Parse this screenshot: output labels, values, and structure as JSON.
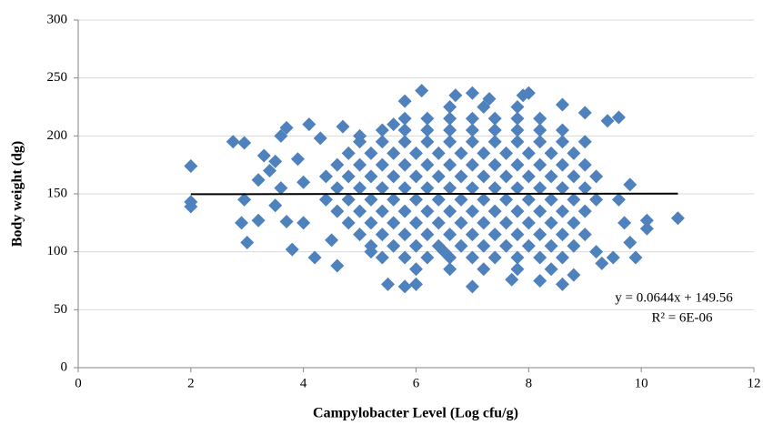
{
  "chart_data": {
    "type": "scatter",
    "x_label": "Campylobacter Level (Log cfu/g)",
    "y_label": "Body weight (dg)",
    "color": "#4f81bd",
    "xlim": [
      0,
      12
    ],
    "xticks": [
      0,
      2,
      4,
      6,
      8,
      10,
      12
    ],
    "ylim": [
      0,
      300
    ],
    "yticks": [
      0,
      50,
      100,
      150,
      200,
      250,
      300
    ],
    "grid": true,
    "x": [
      6.6,
      7.2,
      7.8,
      5.8,
      6.2,
      6.6,
      7.0,
      7.4,
      7.8,
      8.2,
      5.4,
      5.8,
      6.2,
      6.6,
      7.0,
      7.4,
      7.8,
      8.2,
      8.6,
      5.0,
      5.4,
      5.8,
      6.2,
      6.6,
      7.0,
      7.4,
      7.8,
      8.2,
      8.6,
      9.0,
      4.8,
      5.2,
      5.6,
      6.0,
      6.4,
      6.8,
      7.2,
      7.6,
      8.0,
      8.4,
      8.8,
      4.6,
      5.0,
      5.4,
      5.8,
      6.2,
      6.6,
      7.0,
      7.4,
      7.8,
      8.2,
      8.6,
      9.0,
      4.4,
      4.8,
      5.2,
      5.6,
      6.0,
      6.4,
      6.8,
      7.2,
      7.6,
      8.0,
      8.4,
      8.8,
      9.2,
      4.6,
      5.0,
      5.4,
      5.8,
      6.2,
      6.6,
      7.0,
      7.4,
      7.8,
      8.2,
      8.6,
      9.0,
      4.4,
      4.8,
      5.2,
      5.6,
      6.0,
      6.4,
      6.8,
      7.2,
      7.6,
      8.0,
      8.4,
      8.8,
      9.2,
      4.6,
      5.0,
      5.4,
      5.8,
      6.2,
      6.6,
      7.0,
      7.4,
      7.8,
      8.2,
      8.6,
      9.0,
      4.8,
      5.2,
      5.6,
      6.0,
      6.4,
      6.8,
      7.2,
      7.6,
      8.0,
      8.4,
      8.8,
      5.0,
      5.4,
      5.8,
      6.2,
      6.6,
      7.0,
      7.4,
      7.8,
      8.2,
      8.6,
      9.0,
      5.2,
      5.6,
      6.0,
      6.4,
      6.8,
      7.2,
      7.6,
      8.0,
      8.4,
      8.8,
      5.4,
      5.8,
      6.2,
      6.6,
      7.0,
      7.4,
      7.8,
      8.2,
      8.6,
      6.0,
      6.6,
      7.2,
      7.8,
      8.4,
      2,
      2,
      2,
      2.75,
      2.95,
      2.9,
      2.95,
      3.0,
      3.2,
      3.2,
      3.3,
      3.4,
      3.5,
      3.5,
      3.6,
      3.7,
      3.6,
      3.7,
      3.8,
      3.9,
      4.0,
      4.1,
      4.2,
      4.0,
      4.3,
      4.5,
      4.6,
      4.7,
      5.0,
      5.2,
      5.5,
      5.6,
      5.8,
      5.8,
      6.1,
      6.0,
      6.5,
      6.7,
      7.0,
      7.0,
      7.3,
      7.7,
      7.9,
      8.0,
      8.2,
      8.6,
      8.6,
      8.8,
      9.0,
      9.2,
      9.3,
      9.4,
      9.6,
      9.5,
      9.6,
      9.7,
      9.8,
      9.9,
      9.8,
      10.1,
      10.1,
      10.65
    ],
    "values": [
      225,
      225,
      225,
      215,
      215,
      215,
      215,
      215,
      215,
      215,
      205,
      205,
      205,
      205,
      205,
      205,
      205,
      205,
      205,
      195,
      195,
      195,
      195,
      195,
      195,
      195,
      195,
      195,
      195,
      195,
      185,
      185,
      185,
      185,
      185,
      185,
      185,
      185,
      185,
      185,
      185,
      175,
      175,
      175,
      175,
      175,
      175,
      175,
      175,
      175,
      175,
      175,
      175,
      165,
      165,
      165,
      165,
      165,
      165,
      165,
      165,
      165,
      165,
      165,
      165,
      165,
      155,
      155,
      155,
      155,
      155,
      155,
      155,
      155,
      155,
      155,
      155,
      155,
      145,
      145,
      145,
      145,
      145,
      145,
      145,
      145,
      145,
      145,
      145,
      145,
      145,
      135,
      135,
      135,
      135,
      135,
      135,
      135,
      135,
      135,
      135,
      135,
      135,
      125,
      125,
      125,
      125,
      125,
      125,
      125,
      125,
      125,
      125,
      125,
      115,
      115,
      115,
      115,
      115,
      115,
      115,
      115,
      115,
      115,
      115,
      105,
      105,
      105,
      105,
      105,
      105,
      105,
      105,
      105,
      105,
      95,
      95,
      95,
      95,
      95,
      95,
      95,
      95,
      95,
      85,
      85,
      85,
      85,
      85,
      174,
      143,
      139,
      195,
      194,
      125,
      145,
      108,
      127,
      162,
      183,
      170,
      140,
      178,
      200,
      207,
      155,
      126,
      102,
      180,
      160,
      210,
      95,
      125,
      198,
      110,
      88,
      208,
      200,
      100,
      72,
      210,
      70,
      230,
      239,
      72,
      100,
      235,
      237,
      70,
      232,
      76,
      235,
      237,
      75,
      227,
      72,
      80,
      220,
      100,
      90,
      213,
      216,
      95,
      145,
      125,
      158,
      95,
      108,
      127,
      120,
      129
    ],
    "trendline": {
      "color": "#000000",
      "x": [
        2,
        10.65
      ],
      "values": [
        149.7,
        150.2
      ]
    },
    "equation": "y = 0.0644x + 149.56",
    "r_squared": "R² = 6E-06"
  }
}
